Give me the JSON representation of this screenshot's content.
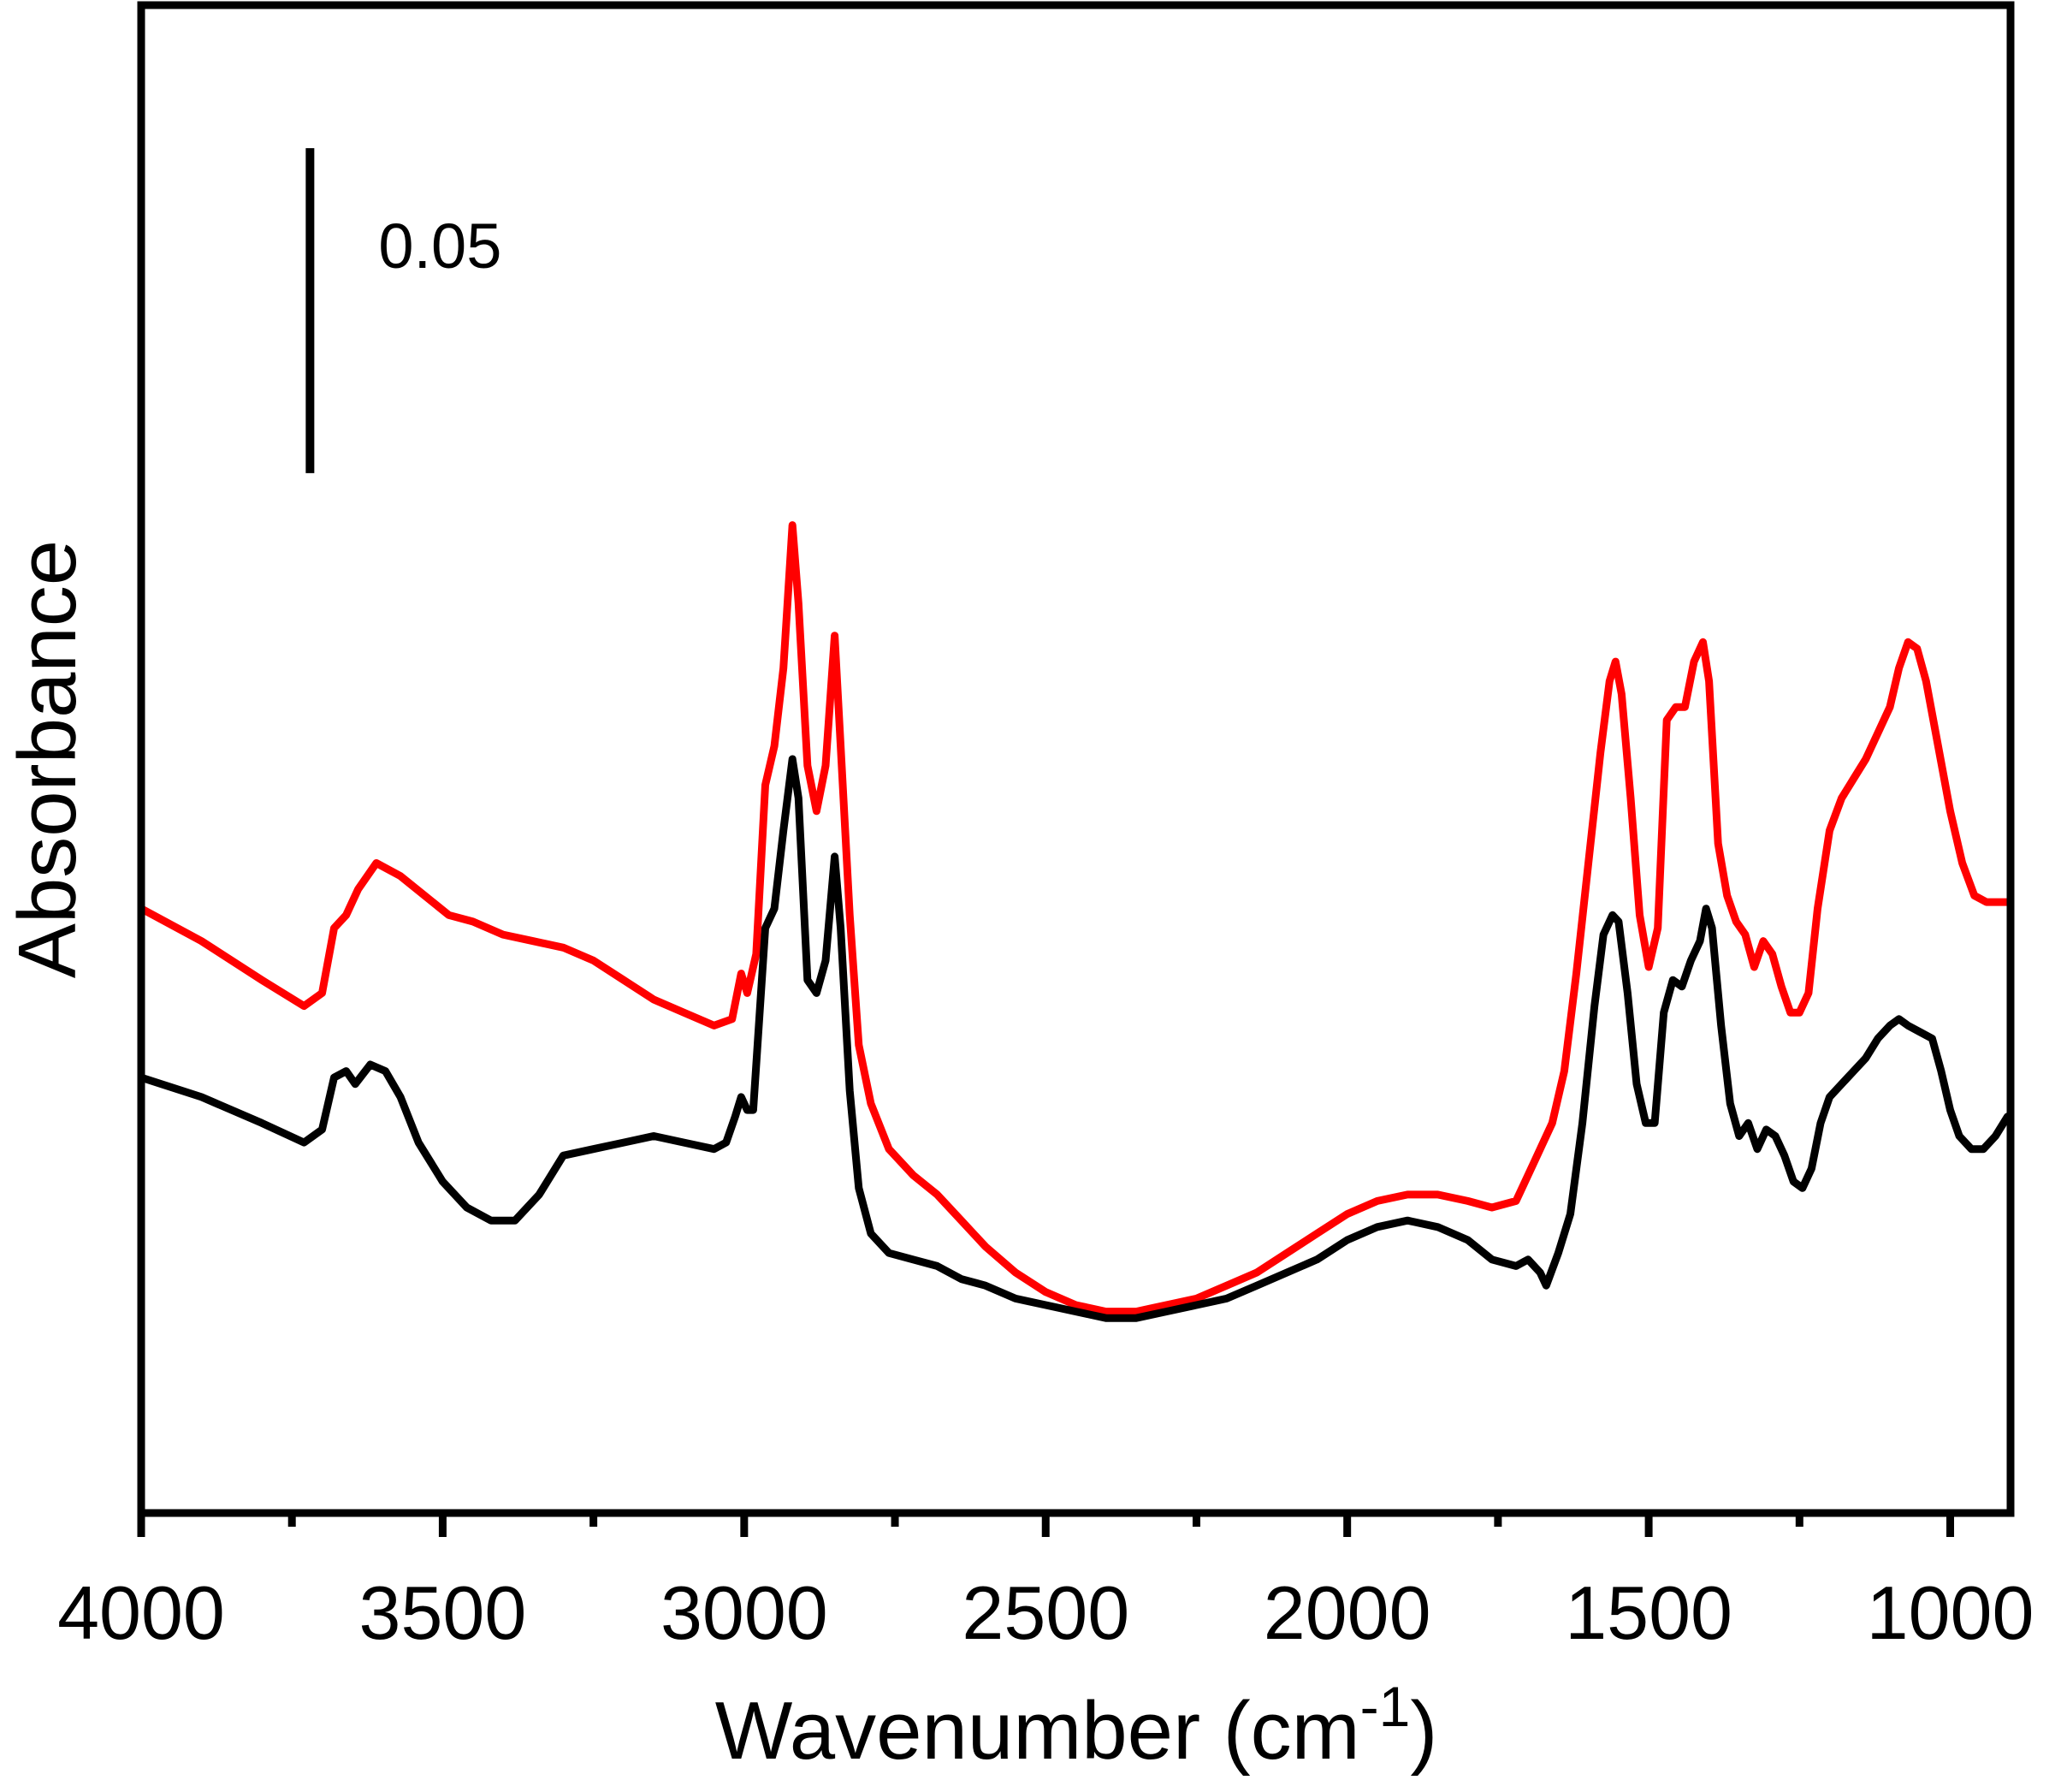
{
  "chart_data": {
    "type": "line",
    "title": "",
    "xlabel": "Wavenumber (cm",
    "xlabel_superscript": "-1",
    "xlabel_close": ")",
    "ylabel": "Absorbance",
    "xlim": [
      4000,
      900
    ],
    "x_reversed": true,
    "ylim": [
      0,
      0.232
    ],
    "x_major_ticks": [
      4000,
      3500,
      3000,
      2500,
      2000,
      1500,
      1000
    ],
    "x_tick_labels": [
      "4000",
      "3500",
      "3000",
      "2500",
      "2000",
      "1500",
      "1000"
    ],
    "x_minor_ticks": [
      3750,
      3250,
      2750,
      2250,
      1750,
      1250
    ],
    "y_ticks_shown": false,
    "grid": false,
    "legend": "none",
    "scale_bar": {
      "value": 0.05,
      "label": "0.05",
      "y_bottom": 0.16,
      "x_position": 3720
    },
    "series": [
      {
        "color": "#ff0000",
        "points": [
          [
            4000,
            0.093
          ],
          [
            3900,
            0.088
          ],
          [
            3800,
            0.082
          ],
          [
            3730,
            0.078
          ],
          [
            3700,
            0.08
          ],
          [
            3680,
            0.09
          ],
          [
            3660,
            0.092
          ],
          [
            3640,
            0.096
          ],
          [
            3610,
            0.1
          ],
          [
            3570,
            0.098
          ],
          [
            3530,
            0.095
          ],
          [
            3490,
            0.092
          ],
          [
            3450,
            0.091
          ],
          [
            3400,
            0.089
          ],
          [
            3350,
            0.088
          ],
          [
            3300,
            0.087
          ],
          [
            3250,
            0.085
          ],
          [
            3200,
            0.082
          ],
          [
            3150,
            0.079
          ],
          [
            3100,
            0.077
          ],
          [
            3050,
            0.075
          ],
          [
            3020,
            0.076
          ],
          [
            3005,
            0.083
          ],
          [
            2995,
            0.08
          ],
          [
            2980,
            0.086
          ],
          [
            2965,
            0.112
          ],
          [
            2950,
            0.118
          ],
          [
            2935,
            0.13
          ],
          [
            2920,
            0.152
          ],
          [
            2910,
            0.14
          ],
          [
            2895,
            0.115
          ],
          [
            2880,
            0.108
          ],
          [
            2865,
            0.115
          ],
          [
            2850,
            0.135
          ],
          [
            2840,
            0.118
          ],
          [
            2825,
            0.092
          ],
          [
            2810,
            0.072
          ],
          [
            2790,
            0.063
          ],
          [
            2760,
            0.056
          ],
          [
            2720,
            0.052
          ],
          [
            2680,
            0.049
          ],
          [
            2640,
            0.045
          ],
          [
            2600,
            0.041
          ],
          [
            2550,
            0.037
          ],
          [
            2500,
            0.034
          ],
          [
            2450,
            0.032
          ],
          [
            2400,
            0.031
          ],
          [
            2350,
            0.031
          ],
          [
            2300,
            0.032
          ],
          [
            2250,
            0.033
          ],
          [
            2200,
            0.035
          ],
          [
            2150,
            0.037
          ],
          [
            2100,
            0.04
          ],
          [
            2050,
            0.043
          ],
          [
            2000,
            0.046
          ],
          [
            1950,
            0.048
          ],
          [
            1900,
            0.049
          ],
          [
            1850,
            0.049
          ],
          [
            1800,
            0.048
          ],
          [
            1760,
            0.047
          ],
          [
            1720,
            0.048
          ],
          [
            1690,
            0.054
          ],
          [
            1660,
            0.06
          ],
          [
            1640,
            0.068
          ],
          [
            1620,
            0.083
          ],
          [
            1600,
            0.1
          ],
          [
            1580,
            0.117
          ],
          [
            1565,
            0.128
          ],
          [
            1555,
            0.131
          ],
          [
            1545,
            0.126
          ],
          [
            1530,
            0.11
          ],
          [
            1515,
            0.092
          ],
          [
            1500,
            0.084
          ],
          [
            1485,
            0.09
          ],
          [
            1470,
            0.122
          ],
          [
            1455,
            0.124
          ],
          [
            1440,
            0.124
          ],
          [
            1425,
            0.131
          ],
          [
            1410,
            0.134
          ],
          [
            1400,
            0.128
          ],
          [
            1385,
            0.103
          ],
          [
            1370,
            0.095
          ],
          [
            1355,
            0.091
          ],
          [
            1340,
            0.089
          ],
          [
            1325,
            0.084
          ],
          [
            1310,
            0.088
          ],
          [
            1295,
            0.086
          ],
          [
            1280,
            0.081
          ],
          [
            1265,
            0.077
          ],
          [
            1250,
            0.077
          ],
          [
            1235,
            0.08
          ],
          [
            1220,
            0.093
          ],
          [
            1200,
            0.105
          ],
          [
            1180,
            0.11
          ],
          [
            1160,
            0.113
          ],
          [
            1140,
            0.116
          ],
          [
            1120,
            0.12
          ],
          [
            1100,
            0.124
          ],
          [
            1085,
            0.13
          ],
          [
            1070,
            0.134
          ],
          [
            1055,
            0.133
          ],
          [
            1040,
            0.128
          ],
          [
            1020,
            0.118
          ],
          [
            1000,
            0.108
          ],
          [
            980,
            0.1
          ],
          [
            960,
            0.095
          ],
          [
            940,
            0.094
          ],
          [
            920,
            0.094
          ],
          [
            905,
            0.094
          ]
        ]
      },
      {
        "color": "#000000",
        "points": [
          [
            4000,
            0.067
          ],
          [
            3900,
            0.064
          ],
          [
            3800,
            0.06
          ],
          [
            3730,
            0.057
          ],
          [
            3700,
            0.059
          ],
          [
            3680,
            0.067
          ],
          [
            3660,
            0.068
          ],
          [
            3645,
            0.066
          ],
          [
            3620,
            0.069
          ],
          [
            3595,
            0.068
          ],
          [
            3570,
            0.064
          ],
          [
            3540,
            0.057
          ],
          [
            3500,
            0.051
          ],
          [
            3460,
            0.047
          ],
          [
            3420,
            0.045
          ],
          [
            3380,
            0.045
          ],
          [
            3340,
            0.049
          ],
          [
            3300,
            0.055
          ],
          [
            3250,
            0.056
          ],
          [
            3200,
            0.057
          ],
          [
            3150,
            0.058
          ],
          [
            3100,
            0.057
          ],
          [
            3050,
            0.056
          ],
          [
            3030,
            0.057
          ],
          [
            3015,
            0.061
          ],
          [
            3005,
            0.064
          ],
          [
            2995,
            0.062
          ],
          [
            2985,
            0.062
          ],
          [
            2965,
            0.09
          ],
          [
            2950,
            0.093
          ],
          [
            2935,
            0.105
          ],
          [
            2920,
            0.116
          ],
          [
            2910,
            0.11
          ],
          [
            2895,
            0.082
          ],
          [
            2880,
            0.08
          ],
          [
            2865,
            0.085
          ],
          [
            2850,
            0.101
          ],
          [
            2840,
            0.09
          ],
          [
            2825,
            0.065
          ],
          [
            2810,
            0.05
          ],
          [
            2790,
            0.043
          ],
          [
            2760,
            0.04
          ],
          [
            2720,
            0.039
          ],
          [
            2680,
            0.038
          ],
          [
            2640,
            0.036
          ],
          [
            2600,
            0.035
          ],
          [
            2550,
            0.033
          ],
          [
            2500,
            0.032
          ],
          [
            2450,
            0.031
          ],
          [
            2400,
            0.03
          ],
          [
            2350,
            0.03
          ],
          [
            2300,
            0.031
          ],
          [
            2250,
            0.032
          ],
          [
            2200,
            0.033
          ],
          [
            2150,
            0.035
          ],
          [
            2100,
            0.037
          ],
          [
            2050,
            0.039
          ],
          [
            2000,
            0.042
          ],
          [
            1950,
            0.044
          ],
          [
            1900,
            0.045
          ],
          [
            1850,
            0.044
          ],
          [
            1800,
            0.042
          ],
          [
            1760,
            0.039
          ],
          [
            1720,
            0.038
          ],
          [
            1700,
            0.039
          ],
          [
            1680,
            0.037
          ],
          [
            1670,
            0.035
          ],
          [
            1650,
            0.04
          ],
          [
            1630,
            0.046
          ],
          [
            1610,
            0.06
          ],
          [
            1590,
            0.078
          ],
          [
            1575,
            0.089
          ],
          [
            1560,
            0.092
          ],
          [
            1550,
            0.091
          ],
          [
            1535,
            0.08
          ],
          [
            1520,
            0.066
          ],
          [
            1505,
            0.06
          ],
          [
            1490,
            0.06
          ],
          [
            1475,
            0.077
          ],
          [
            1460,
            0.082
          ],
          [
            1445,
            0.081
          ],
          [
            1430,
            0.085
          ],
          [
            1415,
            0.088
          ],
          [
            1405,
            0.093
          ],
          [
            1395,
            0.09
          ],
          [
            1380,
            0.075
          ],
          [
            1365,
            0.063
          ],
          [
            1350,
            0.058
          ],
          [
            1335,
            0.06
          ],
          [
            1320,
            0.056
          ],
          [
            1305,
            0.059
          ],
          [
            1290,
            0.058
          ],
          [
            1275,
            0.055
          ],
          [
            1260,
            0.051
          ],
          [
            1245,
            0.05
          ],
          [
            1230,
            0.053
          ],
          [
            1215,
            0.06
          ],
          [
            1200,
            0.064
          ],
          [
            1180,
            0.066
          ],
          [
            1160,
            0.068
          ],
          [
            1140,
            0.07
          ],
          [
            1120,
            0.073
          ],
          [
            1100,
            0.075
          ],
          [
            1085,
            0.076
          ],
          [
            1070,
            0.075
          ],
          [
            1050,
            0.074
          ],
          [
            1030,
            0.073
          ],
          [
            1015,
            0.068
          ],
          [
            1000,
            0.062
          ],
          [
            985,
            0.058
          ],
          [
            965,
            0.056
          ],
          [
            945,
            0.056
          ],
          [
            925,
            0.058
          ],
          [
            905,
            0.061
          ]
        ]
      }
    ]
  }
}
